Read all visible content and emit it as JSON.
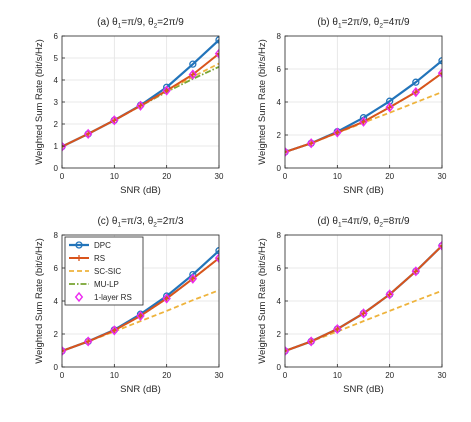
{
  "chart_data": [
    {
      "type": "line",
      "title_parts": [
        "(a) θ",
        "1",
        "=π/9, θ",
        "2",
        "=2π/9"
      ],
      "xlabel": "SNR (dB)",
      "ylabel": "Weighted Sum Rate (bit/s/Hz)",
      "xlim": [
        0,
        30
      ],
      "ylim": [
        0,
        6
      ],
      "xticks": [
        "0",
        "10",
        "20",
        "30"
      ],
      "yticks": [
        "0",
        "1",
        "2",
        "3",
        "4",
        "5",
        "6"
      ],
      "grid": true,
      "x": [
        0,
        5,
        10,
        15,
        20,
        25,
        30
      ],
      "series": [
        {
          "name": "DPC",
          "values": [
            0.97,
            1.55,
            2.17,
            2.85,
            3.67,
            4.72,
            5.82
          ]
        },
        {
          "name": "RS",
          "values": [
            0.97,
            1.55,
            2.17,
            2.83,
            3.52,
            4.25,
            5.2
          ]
        },
        {
          "name": "SC-SIC",
          "values": [
            0.97,
            1.55,
            2.17,
            2.83,
            3.5,
            4.15,
            4.75
          ]
        },
        {
          "name": "MU-LP",
          "values": [
            0.97,
            1.55,
            2.17,
            2.82,
            3.46,
            4.05,
            4.6
          ]
        },
        {
          "name": "1-layer RS",
          "values": [
            0.97,
            1.55,
            2.17,
            2.83,
            3.52,
            4.25,
            5.2
          ]
        }
      ]
    },
    {
      "type": "line",
      "title_parts": [
        "(b) θ",
        "1",
        "=2π/9, θ",
        "2",
        "=4π/9"
      ],
      "xlabel": "SNR (dB)",
      "ylabel": "Weighted Sum Rate (bit/s/Hz)",
      "xlim": [
        0,
        30
      ],
      "ylim": [
        0,
        8
      ],
      "xticks": [
        "0",
        "10",
        "20",
        "30"
      ],
      "yticks": [
        "0",
        "2",
        "4",
        "6",
        "8"
      ],
      "grid": true,
      "x": [
        0,
        5,
        10,
        15,
        20,
        25,
        30
      ],
      "series": [
        {
          "name": "DPC",
          "values": [
            0.97,
            1.5,
            2.2,
            3.05,
            4.05,
            5.2,
            6.5
          ]
        },
        {
          "name": "RS",
          "values": [
            0.97,
            1.5,
            2.15,
            2.8,
            3.68,
            4.6,
            5.75
          ]
        },
        {
          "name": "SC-SIC",
          "values": [
            0.97,
            1.5,
            2.12,
            2.75,
            3.35,
            3.98,
            4.6
          ]
        },
        {
          "name": "MU-LP",
          "values": [
            0.97,
            1.5,
            2.15,
            2.8,
            3.68,
            4.6,
            5.75
          ]
        },
        {
          "name": "1-layer RS",
          "values": [
            0.97,
            1.5,
            2.15,
            2.8,
            3.68,
            4.6,
            5.75
          ]
        }
      ]
    },
    {
      "type": "line",
      "title_parts": [
        "(c) θ",
        "1",
        "=π/3, θ",
        "2",
        "=2π/3"
      ],
      "xlabel": "SNR (dB)",
      "ylabel": "Weighted Sum Rate (bit/s/Hz)",
      "xlim": [
        0,
        30
      ],
      "ylim": [
        0,
        8
      ],
      "xticks": [
        "0",
        "10",
        "20",
        "30"
      ],
      "yticks": [
        "0",
        "2",
        "4",
        "6",
        "8"
      ],
      "grid": true,
      "x": [
        0,
        5,
        10,
        15,
        20,
        25,
        30
      ],
      "series": [
        {
          "name": "DPC",
          "values": [
            0.97,
            1.55,
            2.25,
            3.2,
            4.3,
            5.6,
            7.05
          ]
        },
        {
          "name": "RS",
          "values": [
            0.97,
            1.55,
            2.22,
            3.1,
            4.15,
            5.35,
            6.6
          ]
        },
        {
          "name": "SC-SIC",
          "values": [
            0.97,
            1.55,
            2.15,
            2.78,
            3.4,
            4.05,
            4.65
          ]
        },
        {
          "name": "MU-LP",
          "values": [
            0.97,
            1.55,
            2.22,
            3.1,
            4.15,
            5.35,
            6.6
          ]
        },
        {
          "name": "1-layer RS",
          "values": [
            0.97,
            1.55,
            2.22,
            3.1,
            4.15,
            5.35,
            6.6
          ]
        }
      ]
    },
    {
      "type": "line",
      "title_parts": [
        "(d) θ",
        "1",
        "=4π/9, θ",
        "2",
        "=8π/9"
      ],
      "xlabel": "SNR (dB)",
      "ylabel": "Weighted Sum Rate (bit/s/Hz)",
      "xlim": [
        0,
        30
      ],
      "ylim": [
        0,
        8
      ],
      "xticks": [
        "0",
        "10",
        "20",
        "30"
      ],
      "yticks": [
        "0",
        "2",
        "4",
        "6",
        "8"
      ],
      "grid": true,
      "x": [
        0,
        5,
        10,
        15,
        20,
        25,
        30
      ],
      "series": [
        {
          "name": "DPC",
          "values": [
            0.97,
            1.55,
            2.3,
            3.25,
            4.4,
            5.8,
            7.35
          ]
        },
        {
          "name": "RS",
          "values": [
            0.97,
            1.55,
            2.3,
            3.25,
            4.4,
            5.8,
            7.35
          ]
        },
        {
          "name": "SC-SIC",
          "values": [
            0.97,
            1.55,
            2.15,
            2.78,
            3.4,
            4.02,
            4.62
          ]
        },
        {
          "name": "MU-LP",
          "values": [
            0.97,
            1.55,
            2.3,
            3.25,
            4.4,
            5.8,
            7.35
          ]
        },
        {
          "name": "1-layer RS",
          "values": [
            0.97,
            1.55,
            2.3,
            3.25,
            4.4,
            5.8,
            7.35
          ]
        }
      ]
    }
  ],
  "legend": {
    "placement": "top-left of panel (c)",
    "entries": [
      "DPC",
      "RS",
      "SC-SIC",
      "MU-LP",
      "1-layer RS"
    ]
  },
  "colors": {
    "DPC": "#2274ba",
    "RS": "#d9541c",
    "SC-SIC": "#eeb33c",
    "MU-LP": "#78a431",
    "1-layer RS": "#ec2cf0",
    "grid": "#e3e3e3",
    "axis": "#262626"
  }
}
